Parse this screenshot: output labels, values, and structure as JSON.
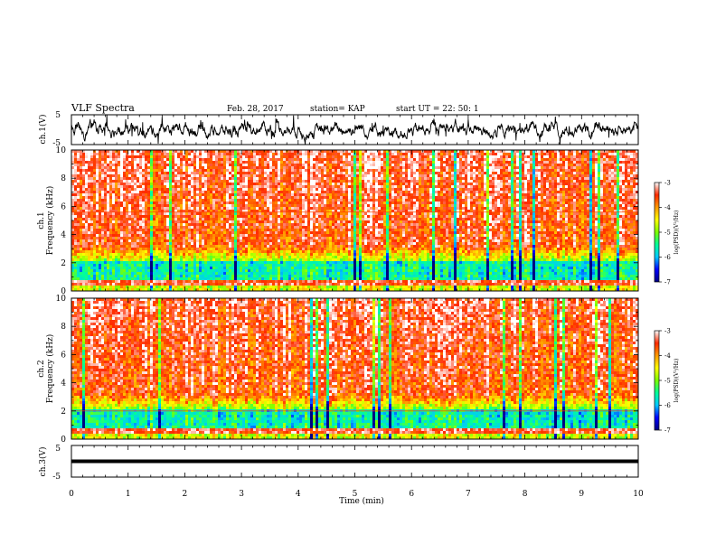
{
  "header": {
    "title": "VLF Spectra",
    "date": "Feb. 28, 2017",
    "station": "station= KAP",
    "start_ut": "start UT =  22: 50: 1"
  },
  "colors": {
    "waveform": "#000000",
    "colormap": [
      "#000080",
      "#0000ff",
      "#00c8ff",
      "#00ff9a",
      "#7cff00",
      "#ffff00",
      "#ff9a00",
      "#ff2a00",
      "#ffffff"
    ]
  },
  "chart_data": [
    {
      "type": "line",
      "ylabel": "ch.1(V)",
      "ylim": [
        -5,
        5
      ],
      "yticks": [
        "5",
        "-5"
      ],
      "xlim": [
        0,
        10
      ]
    },
    {
      "type": "heatmap",
      "ylabel": "Frequency (kHz)",
      "channel_label": "ch.1",
      "ylim": [
        0,
        10
      ],
      "yticks": [
        "0",
        "2",
        "4",
        "6",
        "8",
        "10"
      ],
      "xlim": [
        0,
        10
      ],
      "colorbar": {
        "label": "log(PSD)(V²/Hz)",
        "range": [
          -7,
          -3
        ],
        "ticks": [
          "-3",
          "-4",
          "-5",
          "-6",
          "-7"
        ]
      }
    },
    {
      "type": "heatmap",
      "ylabel": "Frequency (kHz)",
      "channel_label": "ch.2",
      "ylim": [
        0,
        10
      ],
      "yticks": [
        "0",
        "2",
        "4",
        "6",
        "8",
        "10"
      ],
      "xlim": [
        0,
        10
      ],
      "colorbar": {
        "label": "log(PSD)(V²/Hz)",
        "range": [
          -7,
          -3
        ],
        "ticks": [
          "-3",
          "-4",
          "-5",
          "-6",
          "-7"
        ]
      }
    },
    {
      "type": "line",
      "ylabel": "ch.3(V)",
      "ylim": [
        -5,
        5
      ],
      "yticks": [
        "5",
        "-5"
      ],
      "xlim": [
        0,
        10
      ],
      "xlabel": "Time (min)",
      "xticks": [
        "0",
        "1",
        "2",
        "3",
        "4",
        "5",
        "6",
        "7",
        "8",
        "9",
        "10"
      ]
    }
  ]
}
